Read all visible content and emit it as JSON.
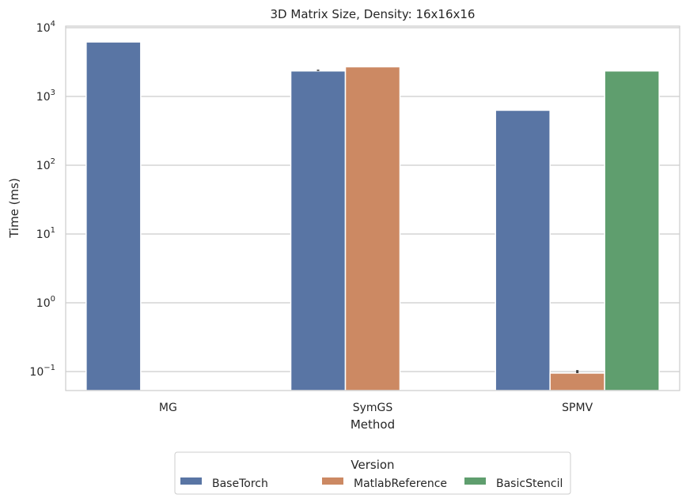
{
  "chart_data": {
    "type": "bar",
    "title": "3D Matrix Size, Density: 16x16x16",
    "xlabel": "Method",
    "ylabel": "Time (ms)",
    "yscale": "log",
    "ylim": [
      0.055,
      15000
    ],
    "grid": "y",
    "categories": [
      "MG",
      "SymGS",
      "SPMV"
    ],
    "y_ticks": [
      {
        "value": 0.1,
        "base": "10",
        "exp": "−1"
      },
      {
        "value": 1,
        "base": "10",
        "exp": "0"
      },
      {
        "value": 10,
        "base": "10",
        "exp": "1"
      },
      {
        "value": 100,
        "base": "10",
        "exp": "2"
      },
      {
        "value": 1000,
        "base": "10",
        "exp": "3"
      },
      {
        "value": 10000,
        "base": "10",
        "exp": "4"
      }
    ],
    "series": [
      {
        "name": "BaseTorch",
        "color": "#5975a4",
        "values": [
          6200,
          2350,
          630
        ],
        "err_high": [
          null,
          2450,
          null
        ]
      },
      {
        "name": "MatlabReference",
        "color": "#cc8963",
        "values": [
          null,
          2700,
          0.095
        ],
        "err_high": [
          null,
          null,
          0.105
        ]
      },
      {
        "name": "BasicStencil",
        "color": "#5f9e6e",
        "values": [
          null,
          null,
          2350
        ],
        "err_high": [
          null,
          null,
          null
        ]
      }
    ],
    "legend": {
      "title": "Version",
      "placement": "bottom-center"
    }
  }
}
